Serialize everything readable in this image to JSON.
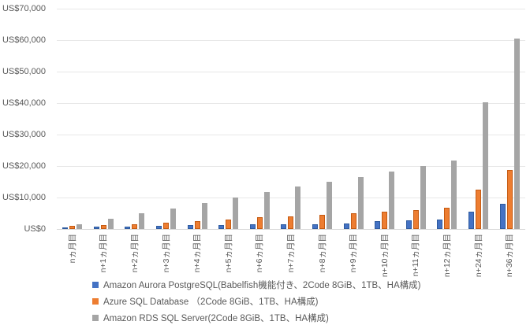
{
  "chart_data": {
    "type": "bar",
    "title": "",
    "xlabel": "",
    "ylabel": "",
    "categories": [
      "nヵ月目",
      "n+1ヵ月目",
      "n+2ヵ月目",
      "n+3ヵ月目",
      "n+4ヵ月目",
      "n+5ヵ月目",
      "n+6ヵ月目",
      "n+7ヵ月目",
      "n+8ヵ月目",
      "n+9ヵ月目",
      "n+10ヵ月目",
      "n+11ヵ月目",
      "n+12ヵ月目",
      "n+24ヵ月目",
      "n+36ヵ月目"
    ],
    "series": [
      {
        "name": "Amazon Aurora PostgreSQL(Babelfish機能付き、2Code 8GiB、1TB、HA構成)",
        "color": "#4472C4",
        "border_color": "#2E5B9F",
        "values": [
          500,
          680,
          830,
          1080,
          1250,
          1330,
          1430,
          1500,
          1580,
          1670,
          2500,
          2750,
          2930,
          5430,
          7930
        ]
      },
      {
        "name": "Azure SQL Database （2Code 8GiB、1TB、HA構成)",
        "color": "#ED7D31",
        "border_color": "#C55A11",
        "values": [
          1000,
          1250,
          1500,
          1930,
          2500,
          3080,
          3750,
          4000,
          4500,
          5080,
          5580,
          6080,
          6680,
          12500,
          18750
        ]
      },
      {
        "name": "Amazon RDS SQL Server(2Code 8GiB、1TB、HA構成)",
        "color": "#A5A5A5",
        "border_color": "#9B9B9B",
        "values": [
          1600,
          3200,
          5100,
          6500,
          8300,
          10000,
          11700,
          13400,
          14900,
          16600,
          18250,
          20000,
          21750,
          40300,
          60400
        ]
      }
    ],
    "y_axis": {
      "min": 0,
      "max": 70000,
      "tick_step": 10000,
      "tick_labels": [
        "US$0",
        "US$10,000",
        "US$20,000",
        "US$30,000",
        "US$40,000",
        "US$50,000",
        "US$60,000",
        "US$70,000"
      ]
    },
    "grid": true,
    "legend_position": "bottom-left",
    "style": {
      "gridline_color": "#e7e7e7",
      "axis_line_color": "#d9d9d9",
      "text_color": "#595959",
      "background": "#ffffff"
    }
  }
}
